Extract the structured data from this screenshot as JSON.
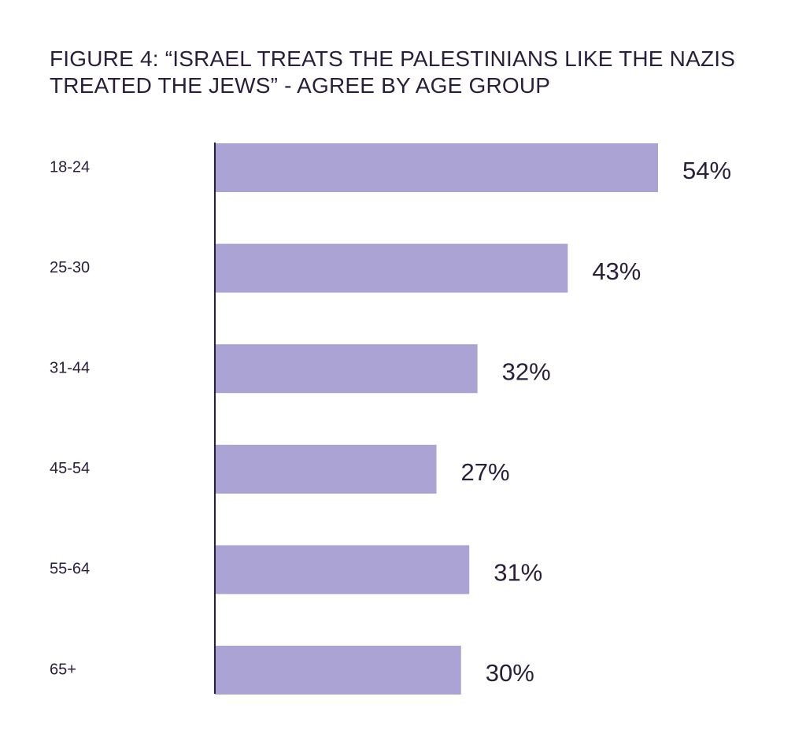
{
  "title_lines": [
    "FIGURE 4: “ISRAEL TREATS THE PALESTINIANS LIKE THE NAZIS",
    "TREATED THE JEWS” - AGREE BY AGE GROUP"
  ],
  "colors": {
    "bar": "#aaa3d4",
    "axis": "#2a1f3a",
    "text": "#2a1f3a"
  },
  "chart_data": {
    "type": "bar",
    "orientation": "horizontal",
    "title": "FIGURE 4: “ISRAEL TREATS THE PALESTINIANS LIKE THE NAZIS TREATED THE JEWS” - AGREE BY AGE GROUP",
    "categories": [
      "18-24",
      "25-30",
      "31-44",
      "45-54",
      "55-64",
      "65+"
    ],
    "values": [
      54,
      43,
      32,
      27,
      31,
      30
    ],
    "value_labels": [
      "54%",
      "43%",
      "32%",
      "27%",
      "31%",
      "30%"
    ],
    "xlim": [
      0,
      54
    ],
    "grid": false,
    "legend": "none"
  }
}
